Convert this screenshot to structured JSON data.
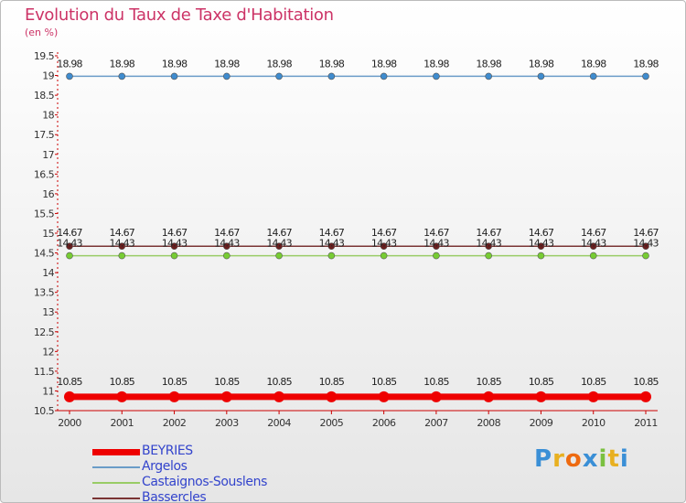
{
  "title": "Evolution du Taux de Taxe d'Habitation",
  "unit_label": "(en %)",
  "brand": {
    "logo_text": "Proxiti",
    "letter_colors": [
      "#3a8fd6",
      "#e8b020",
      "#ee6a10",
      "#3a8fd6",
      "#7ac040",
      "#e8b020",
      "#3a8fd6"
    ]
  },
  "chart_data": {
    "type": "line",
    "title": "Evolution du Taux de Taxe d'Habitation",
    "ylabel": "(en %)",
    "xlabel": "",
    "ylim": [
      10.5,
      19.5
    ],
    "ytick_step": 0.5,
    "grid": false,
    "legend_position": "bottom-left",
    "x": [
      "2000",
      "2001",
      "2002",
      "2003",
      "2004",
      "2005",
      "2006",
      "2007",
      "2008",
      "2009",
      "2010",
      "2011"
    ],
    "series": [
      {
        "name": "BEYRIES",
        "color": "#ee0000",
        "marker_color": "#ee0000",
        "width": "thick",
        "values": [
          10.85,
          10.85,
          10.85,
          10.85,
          10.85,
          10.85,
          10.85,
          10.85,
          10.85,
          10.85,
          10.85,
          10.85
        ],
        "labels": [
          "10.85",
          "10.85",
          "10.85",
          "10.85",
          "10.85",
          "10.85",
          "10.85",
          "10.85",
          "10.85",
          "10.85",
          "10.85",
          "10.85"
        ]
      },
      {
        "name": "Argelos",
        "color": "#6a9cc8",
        "marker_color": "#3f8ccf",
        "width": "thin",
        "values": [
          18.98,
          18.98,
          18.98,
          18.98,
          18.98,
          18.98,
          18.98,
          18.98,
          18.98,
          18.98,
          18.98,
          18.98
        ],
        "labels": [
          "18.98",
          "18.98",
          "18.98",
          "18.98",
          "18.98",
          "18.98",
          "18.98",
          "18.98",
          "18.98",
          "18.98",
          "18.98",
          "18.98"
        ]
      },
      {
        "name": "Castaignos-Souslens",
        "color": "#99cc66",
        "marker_color": "#77cc33",
        "width": "thin",
        "values": [
          14.43,
          14.43,
          14.43,
          14.43,
          14.43,
          14.43,
          14.43,
          14.43,
          14.43,
          14.43,
          14.43,
          14.43
        ],
        "labels": [
          "14.43",
          "14.43",
          "14.43",
          "14.43",
          "14.43",
          "14.43",
          "14.43",
          "14.43",
          "14.43",
          "14.43",
          "14.43",
          "14.43"
        ]
      },
      {
        "name": "Bassercles",
        "color": "#7a3434",
        "marker_color": "#6b1f1f",
        "width": "thin",
        "values": [
          14.67,
          14.67,
          14.67,
          14.67,
          14.67,
          14.67,
          14.67,
          14.67,
          14.67,
          14.67,
          14.67,
          14.67
        ],
        "labels": [
          "14.67",
          "14.67",
          "14.67",
          "14.67",
          "14.67",
          "14.67",
          "14.67",
          "14.67",
          "14.67",
          "14.67",
          "14.67",
          "14.67"
        ]
      }
    ],
    "axis_color": "#cc0000"
  }
}
